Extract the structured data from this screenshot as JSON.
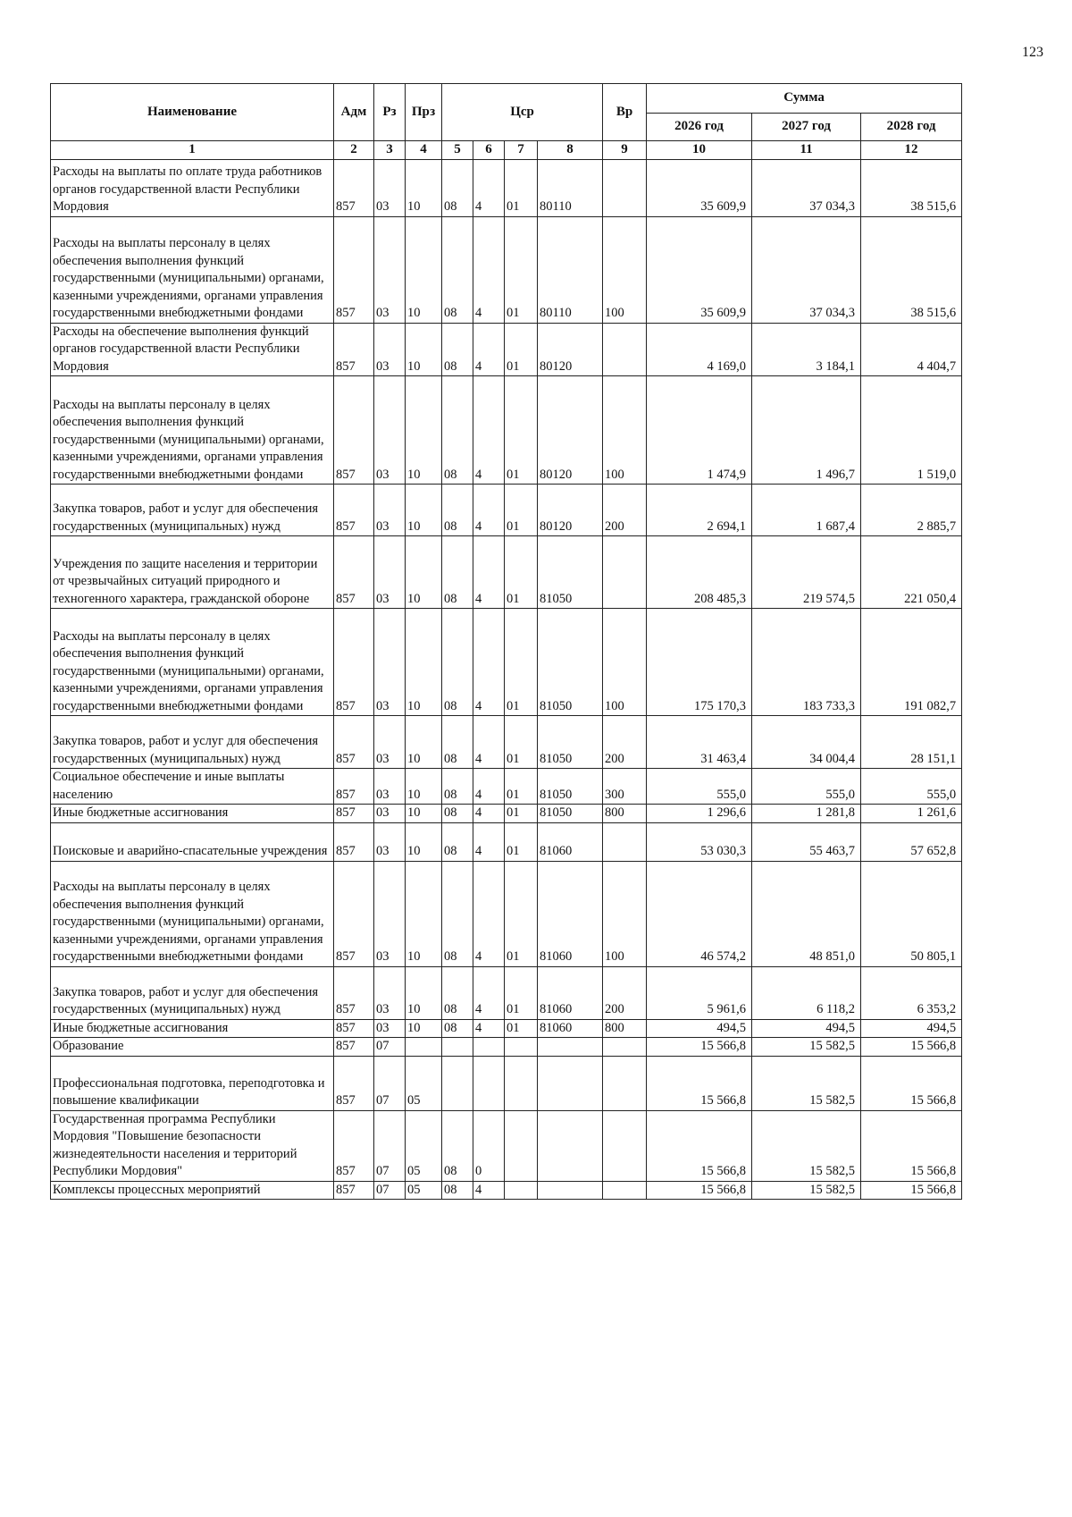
{
  "page_number": "123",
  "header": {
    "name": "Наименование",
    "adm": "Адм",
    "rz": "Рз",
    "prz": "Прз",
    "csr": "Цср",
    "vr": "Вр",
    "sum": "Сумма",
    "years": [
      "2026 год",
      "2027 год",
      "2028 год"
    ],
    "indexes": [
      "1",
      "2",
      "3",
      "4",
      "5",
      "6",
      "7",
      "8",
      "9",
      "10",
      "11",
      "12"
    ]
  },
  "rows": [
    {
      "name": "Расходы на выплаты по оплате труда работников органов государственной власти Республики Мордовия",
      "adm": "857",
      "rz": "03",
      "prz": "10",
      "c5": "08",
      "c6": "4",
      "c7": "01",
      "c8": "80110",
      "vr": "",
      "y2026": "35 609,9",
      "y2027": "37 034,3",
      "y2028": "38 515,6"
    },
    {
      "name": "Расходы на выплаты персоналу в целях обеспечения выполнения функций государственными (муниципальными) органами, казенными учреждениями, органами управления государственными внебюджетными фондами",
      "adm": "857",
      "rz": "03",
      "prz": "10",
      "c5": "08",
      "c6": "4",
      "c7": "01",
      "c8": "80110",
      "vr": "100",
      "y2026": "35 609,9",
      "y2027": "37 034,3",
      "y2028": "38 515,6"
    },
    {
      "name": "Расходы на обеспечение выполнения функций органов государственной власти Республики Мордовия",
      "adm": "857",
      "rz": "03",
      "prz": "10",
      "c5": "08",
      "c6": "4",
      "c7": "01",
      "c8": "80120",
      "vr": "",
      "y2026": "4 169,0",
      "y2027": "3 184,1",
      "y2028": "4 404,7"
    },
    {
      "name": "Расходы на выплаты персоналу в целях обеспечения выполнения функций государственными (муниципальными) органами, казенными учреждениями, органами управления государственными внебюджетными фондами",
      "adm": "857",
      "rz": "03",
      "prz": "10",
      "c5": "08",
      "c6": "4",
      "c7": "01",
      "c8": "80120",
      "vr": "100",
      "y2026": "1 474,9",
      "y2027": "1 496,7",
      "y2028": "1 519,0"
    },
    {
      "name": "Закупка товаров, работ и услуг для обеспечения государственных (муниципальных) нужд",
      "adm": "857",
      "rz": "03",
      "prz": "10",
      "c5": "08",
      "c6": "4",
      "c7": "01",
      "c8": "80120",
      "vr": "200",
      "y2026": "2 694,1",
      "y2027": "1 687,4",
      "y2028": "2 885,7"
    },
    {
      "name": "Учреждения по защите населения и территории от чрезвычайных ситуаций природного и техногенного характера, гражданской обороне",
      "adm": "857",
      "rz": "03",
      "prz": "10",
      "c5": "08",
      "c6": "4",
      "c7": "01",
      "c8": "81050",
      "vr": "",
      "y2026": "208 485,3",
      "y2027": "219 574,5",
      "y2028": "221 050,4"
    },
    {
      "name": "Расходы на выплаты персоналу в целях обеспечения выполнения функций государственными (муниципальными) органами, казенными учреждениями, органами управления государственными внебюджетными фондами",
      "adm": "857",
      "rz": "03",
      "prz": "10",
      "c5": "08",
      "c6": "4",
      "c7": "01",
      "c8": "81050",
      "vr": "100",
      "y2026": "175 170,3",
      "y2027": "183 733,3",
      "y2028": "191 082,7"
    },
    {
      "name": "Закупка товаров, работ и услуг для обеспечения государственных (муниципальных) нужд",
      "adm": "857",
      "rz": "03",
      "prz": "10",
      "c5": "08",
      "c6": "4",
      "c7": "01",
      "c8": "81050",
      "vr": "200",
      "y2026": "31 463,4",
      "y2027": "34 004,4",
      "y2028": "28 151,1"
    },
    {
      "name": "Социальное обеспечение и иные выплаты населению",
      "adm": "857",
      "rz": "03",
      "prz": "10",
      "c5": "08",
      "c6": "4",
      "c7": "01",
      "c8": "81050",
      "vr": "300",
      "y2026": "555,0",
      "y2027": "555,0",
      "y2028": "555,0"
    },
    {
      "name": "Иные бюджетные ассигнования",
      "adm": "857",
      "rz": "03",
      "prz": "10",
      "c5": "08",
      "c6": "4",
      "c7": "01",
      "c8": "81050",
      "vr": "800",
      "y2026": "1 296,6",
      "y2027": "1 281,8",
      "y2028": "1 261,6"
    },
    {
      "name": "Поисковые и аварийно-спасательные учреждения",
      "adm": "857",
      "rz": "03",
      "prz": "10",
      "c5": "08",
      "c6": "4",
      "c7": "01",
      "c8": "81060",
      "vr": "",
      "y2026": "53 030,3",
      "y2027": "55 463,7",
      "y2028": "57 652,8"
    },
    {
      "name": "Расходы на выплаты персоналу в целях обеспечения выполнения функций государственными (муниципальными) органами, казенными учреждениями, органами управления государственными внебюджетными фондами",
      "adm": "857",
      "rz": "03",
      "prz": "10",
      "c5": "08",
      "c6": "4",
      "c7": "01",
      "c8": "81060",
      "vr": "100",
      "y2026": "46 574,2",
      "y2027": "48 851,0",
      "y2028": "50 805,1"
    },
    {
      "name": "Закупка товаров, работ и услуг для обеспечения государственных (муниципальных) нужд",
      "adm": "857",
      "rz": "03",
      "prz": "10",
      "c5": "08",
      "c6": "4",
      "c7": "01",
      "c8": "81060",
      "vr": "200",
      "y2026": "5 961,6",
      "y2027": "6 118,2",
      "y2028": "6 353,2"
    },
    {
      "name": "Иные бюджетные ассигнования",
      "adm": "857",
      "rz": "03",
      "prz": "10",
      "c5": "08",
      "c6": "4",
      "c7": "01",
      "c8": "81060",
      "vr": "800",
      "y2026": "494,5",
      "y2027": "494,5",
      "y2028": "494,5"
    },
    {
      "name": "Образование",
      "adm": "857",
      "rz": "07",
      "prz": "",
      "c5": "",
      "c6": "",
      "c7": "",
      "c8": "",
      "vr": "",
      "y2026": "15 566,8",
      "y2027": "15 582,5",
      "y2028": "15 566,8"
    },
    {
      "name": "Профессиональная подготовка, переподготовка и повышение квалификации",
      "adm": "857",
      "rz": "07",
      "prz": "05",
      "c5": "",
      "c6": "",
      "c7": "",
      "c8": "",
      "vr": "",
      "y2026": "15 566,8",
      "y2027": "15 582,5",
      "y2028": "15 566,8"
    },
    {
      "name": "Государственная программа Республики Мордовия \"Повышение безопасности жизнедеятельности населения и территорий Республики Мордовия\"",
      "adm": "857",
      "rz": "07",
      "prz": "05",
      "c5": "08",
      "c6": "0",
      "c7": "",
      "c8": "",
      "vr": "",
      "y2026": "15 566,8",
      "y2027": "15 582,5",
      "y2028": "15 566,8"
    },
    {
      "name": "Комплексы процессных мероприятий",
      "adm": "857",
      "rz": "07",
      "prz": "05",
      "c5": "08",
      "c6": "4",
      "c7": "",
      "c8": "",
      "vr": "",
      "y2026": "15 566,8",
      "y2027": "15 582,5",
      "y2028": "15 566,8"
    }
  ]
}
